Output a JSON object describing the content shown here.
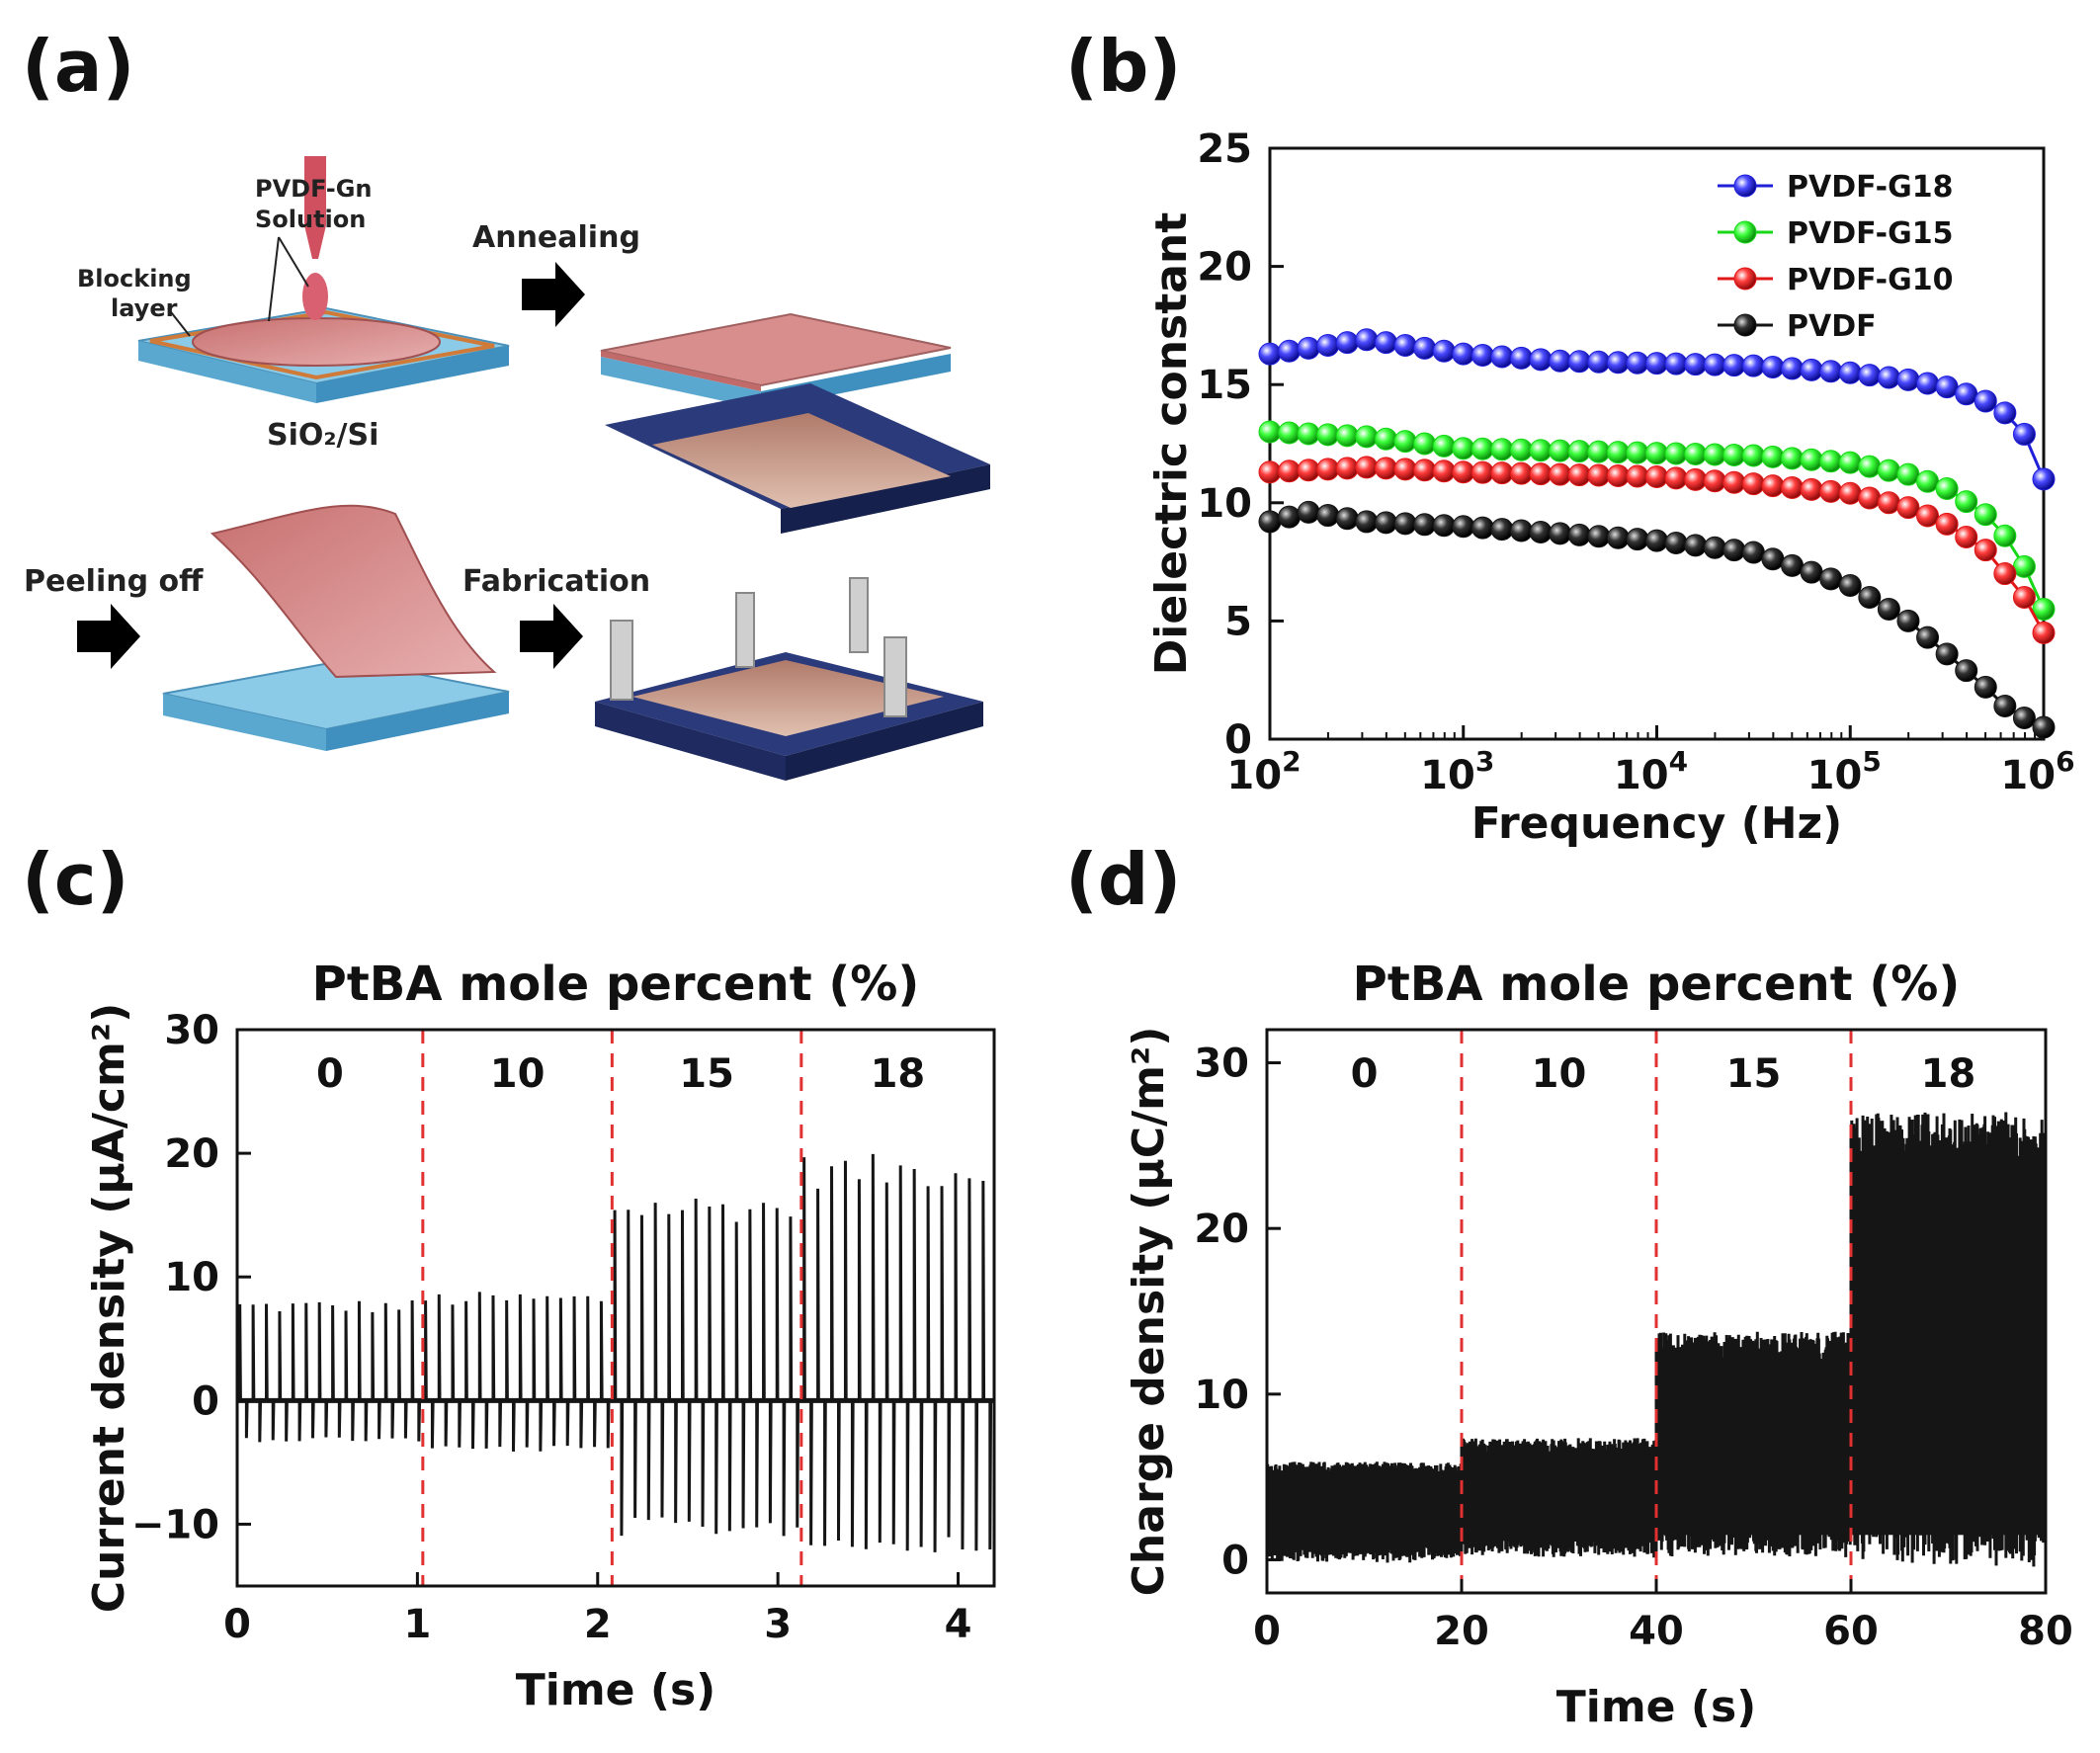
{
  "panels": {
    "a": {
      "label": "(a)",
      "texts": {
        "solution": "PVDF-Gn",
        "solution2": "Solution",
        "blocking": "Blocking",
        "blocking2": "layer",
        "substrate": "SiO₂/Si",
        "annealing": "Annealing",
        "peeling": "Peeling off",
        "fabrication": "Fabrication"
      }
    },
    "b": {
      "label": "(b)"
    },
    "c": {
      "label": "(c)"
    },
    "d": {
      "label": "(d)"
    }
  },
  "colors": {
    "blue": "#1f1fd8",
    "green": "#18d818",
    "red": "#e01818",
    "black": "#151515",
    "divider": "#e03030",
    "substrate": "#8ccbe8",
    "film": "#d98e8e",
    "device": "#2a3a7a"
  },
  "chart_data": [
    {
      "id": "b",
      "type": "scatter",
      "xlabel": "Frequency (Hz)",
      "ylabel": "Dielectric constant",
      "xscale": "log",
      "xlim": [
        100,
        1000000
      ],
      "ylim": [
        0,
        25
      ],
      "xticks": [
        {
          "base": "10",
          "exp": "2"
        },
        {
          "base": "10",
          "exp": "3"
        },
        {
          "base": "10",
          "exp": "4"
        },
        {
          "base": "10",
          "exp": "5"
        },
        {
          "base": "10",
          "exp": "6"
        }
      ],
      "yticks": [
        "0",
        "5",
        "10",
        "15",
        "20",
        "25"
      ],
      "legend_position": "top-right",
      "series": [
        {
          "name": "PVDF-G18",
          "color": "blue",
          "x_log": [
            2.0,
            2.5,
            3.0,
            3.5,
            4.0,
            4.5,
            5.0,
            5.3,
            5.5,
            5.7,
            5.8,
            5.9,
            6.0
          ],
          "y": [
            16.3,
            16.9,
            16.3,
            16.0,
            15.9,
            15.8,
            15.5,
            15.2,
            14.9,
            14.3,
            13.8,
            12.9,
            11.0
          ]
        },
        {
          "name": "PVDF-G15",
          "color": "green",
          "x_log": [
            2.0,
            2.5,
            3.0,
            3.5,
            4.0,
            4.5,
            5.0,
            5.3,
            5.5,
            5.7,
            5.8,
            5.9,
            6.0
          ],
          "y": [
            13.0,
            12.8,
            12.3,
            12.2,
            12.1,
            12.0,
            11.7,
            11.2,
            10.6,
            9.5,
            8.6,
            7.3,
            5.5
          ]
        },
        {
          "name": "PVDF-G10",
          "color": "red",
          "x_log": [
            2.0,
            2.5,
            3.0,
            3.5,
            4.0,
            4.5,
            5.0,
            5.3,
            5.5,
            5.7,
            5.8,
            5.9,
            6.0
          ],
          "y": [
            11.3,
            11.5,
            11.3,
            11.2,
            11.1,
            10.8,
            10.4,
            9.8,
            9.1,
            8.0,
            7.0,
            6.0,
            4.5
          ]
        },
        {
          "name": "PVDF",
          "color": "black",
          "x_log": [
            2.0,
            2.2,
            2.5,
            3.0,
            3.5,
            4.0,
            4.5,
            5.0,
            5.3,
            5.5,
            5.7,
            5.8,
            5.9,
            6.0
          ],
          "y": [
            9.2,
            9.6,
            9.2,
            9.0,
            8.7,
            8.4,
            7.9,
            6.5,
            5.0,
            3.6,
            2.2,
            1.4,
            0.9,
            0.5
          ]
        }
      ]
    },
    {
      "id": "c",
      "type": "line",
      "toplabel": "PtBA mole percent (%)",
      "xlabel": "Time (s)",
      "ylabel": "Current density (μA/cm²)",
      "xlim": [
        0,
        4.2
      ],
      "ylim": [
        -15,
        30
      ],
      "xticks": [
        "0",
        "1",
        "2",
        "3",
        "4"
      ],
      "yticks": [
        "−10",
        "0",
        "10",
        "20",
        "30"
      ],
      "segment_labels": [
        "0",
        "10",
        "15",
        "18"
      ],
      "dividers": [
        1.03,
        2.08,
        3.13
      ],
      "pulses_per_segment": 14,
      "segments": [
        {
          "start": 0.0,
          "end": 1.03,
          "pos_peak": 7.8,
          "neg_peak": -3.2
        },
        {
          "start": 1.03,
          "end": 2.08,
          "pos_peak": 8.4,
          "neg_peak": -4.0
        },
        {
          "start": 2.08,
          "end": 3.13,
          "pos_peak": 16.0,
          "neg_peak": -10.5
        },
        {
          "start": 3.13,
          "end": 4.2,
          "pos_peak": 19.0,
          "neg_peak": -11.8
        }
      ]
    },
    {
      "id": "d",
      "type": "line",
      "toplabel": "PtBA mole percent (%)",
      "xlabel": "Time (s)",
      "ylabel": "Charge density (μC/m²)",
      "xlim": [
        0,
        80
      ],
      "ylim": [
        -2,
        32
      ],
      "xticks": [
        "0",
        "20",
        "40",
        "60",
        "80"
      ],
      "yticks": [
        "0",
        "10",
        "20",
        "30"
      ],
      "segment_labels": [
        "0",
        "10",
        "15",
        "18"
      ],
      "dividers": [
        20,
        40,
        60
      ],
      "segments": [
        {
          "start": 0,
          "end": 20,
          "low": 0.2,
          "high": 5.8
        },
        {
          "start": 20,
          "end": 40,
          "low": 0.5,
          "high": 7.2
        },
        {
          "start": 40,
          "end": 60,
          "low": 0.5,
          "high": 13.5
        },
        {
          "start": 60,
          "end": 80,
          "low": 0.5,
          "high": 26.5
        }
      ]
    }
  ]
}
